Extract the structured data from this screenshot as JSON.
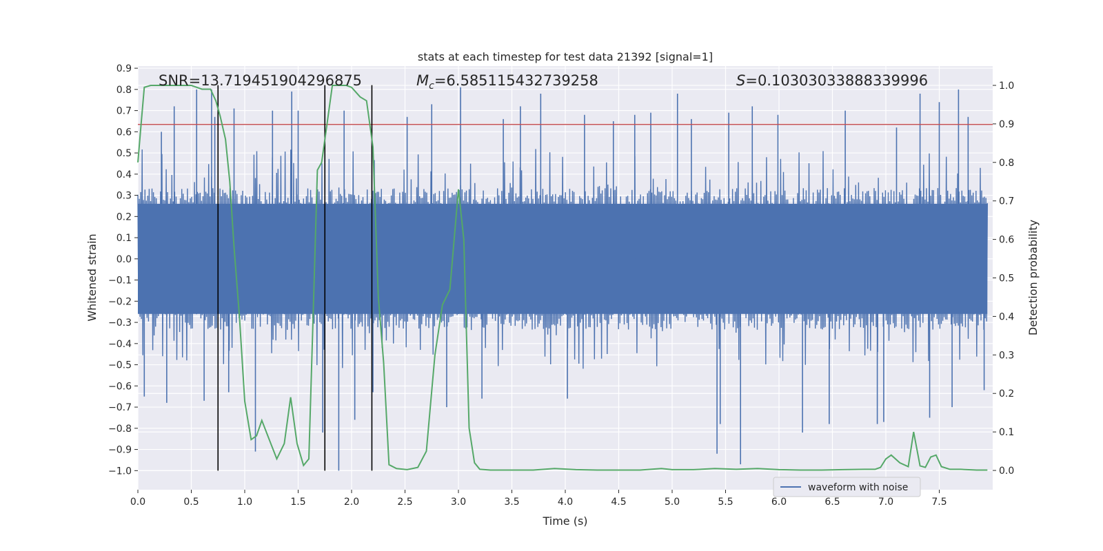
{
  "chart_data": {
    "type": "line",
    "title": "stats at each timestep for test data 21392 [signal=1]",
    "xlabel": "Time (s)",
    "ylabel_left": "Whitened strain",
    "ylabel_right": "Detection probability",
    "xlim": [
      0.0,
      8.0
    ],
    "ylim_left": [
      -1.09,
      0.91
    ],
    "ylim_right": [
      -0.05,
      1.05
    ],
    "x_ticks": [
      0.0,
      0.5,
      1.0,
      1.5,
      2.0,
      2.5,
      3.0,
      3.5,
      4.0,
      4.5,
      5.0,
      5.5,
      6.0,
      6.5,
      7.0,
      7.5
    ],
    "x_tick_labels": [
      "0.0",
      "0.5",
      "1.0",
      "1.5",
      "2.0",
      "2.5",
      "3.0",
      "3.5",
      "4.0",
      "4.5",
      "5.0",
      "5.5",
      "6.0",
      "6.5",
      "7.0",
      "7.5"
    ],
    "y_left_ticks": [
      0.9,
      0.8,
      0.7,
      0.6,
      0.5,
      0.4,
      0.3,
      0.2,
      0.1,
      0.0,
      -0.1,
      -0.2,
      -0.3,
      -0.4,
      -0.5,
      -0.6,
      -0.7,
      -0.8,
      -0.9,
      -1.0
    ],
    "y_left_tick_labels": [
      "0.9",
      "0.8",
      "0.7",
      "0.6",
      "0.5",
      "0.4",
      "0.3",
      "0.2",
      "0.1",
      "0.0",
      "−0.1",
      "−0.2",
      "−0.3",
      "−0.4",
      "−0.5",
      "−0.6",
      "−0.7",
      "−0.8",
      "−0.9",
      "−1.0"
    ],
    "y_right_ticks": [
      1.0,
      0.9,
      0.8,
      0.7,
      0.6,
      0.5,
      0.4,
      0.3,
      0.2,
      0.1,
      0.0
    ],
    "y_right_tick_labels": [
      "1.0",
      "0.9",
      "0.8",
      "0.7",
      "0.6",
      "0.5",
      "0.4",
      "0.3",
      "0.2",
      "0.1",
      "0.0"
    ],
    "annotations": {
      "snr": "SNR=13.719451904296875",
      "mc_symbol": "M",
      "mc_sub": "c",
      "mc_value": "=6.585115432739258",
      "s_symbol": "S",
      "s_value": "=0.10303033888339996"
    },
    "threshold_line": {
      "value": 0.635,
      "color": "#c44e52"
    },
    "vertical_lines": [
      0.75,
      1.75,
      2.19
    ],
    "vertical_line_range": [
      -1.0,
      0.82
    ],
    "waveform": {
      "name": "waveform with noise",
      "color": "#4c72b0",
      "samples": 1200,
      "core_amplitude": 0.26,
      "spikes": [
        {
          "x": 0.06,
          "y": -0.65
        },
        {
          "x": 0.22,
          "y": 0.6
        },
        {
          "x": 0.27,
          "y": -0.68
        },
        {
          "x": 0.34,
          "y": 0.72
        },
        {
          "x": 0.55,
          "y": 0.8
        },
        {
          "x": 0.62,
          "y": -0.67
        },
        {
          "x": 0.69,
          "y": 0.8
        },
        {
          "x": 0.72,
          "y": 0.67
        },
        {
          "x": 0.85,
          "y": -0.63
        },
        {
          "x": 0.9,
          "y": 0.71
        },
        {
          "x": 1.1,
          "y": -0.91
        },
        {
          "x": 1.26,
          "y": 0.7
        },
        {
          "x": 1.44,
          "y": 0.79
        },
        {
          "x": 1.5,
          "y": 0.7
        },
        {
          "x": 1.73,
          "y": -0.82
        },
        {
          "x": 1.88,
          "y": -1.0
        },
        {
          "x": 1.93,
          "y": 0.7
        },
        {
          "x": 2.03,
          "y": -0.76
        },
        {
          "x": 2.2,
          "y": -0.63
        },
        {
          "x": 2.52,
          "y": 0.67
        },
        {
          "x": 2.75,
          "y": 0.73
        },
        {
          "x": 2.89,
          "y": -0.7
        },
        {
          "x": 3.02,
          "y": 0.81
        },
        {
          "x": 3.22,
          "y": -0.66
        },
        {
          "x": 3.42,
          "y": 0.66
        },
        {
          "x": 3.58,
          "y": 0.72
        },
        {
          "x": 3.77,
          "y": 0.78
        },
        {
          "x": 4.02,
          "y": -0.66
        },
        {
          "x": 4.18,
          "y": 0.68
        },
        {
          "x": 4.45,
          "y": 0.65
        },
        {
          "x": 4.65,
          "y": 0.68
        },
        {
          "x": 4.8,
          "y": 0.69
        },
        {
          "x": 5.05,
          "y": 0.78
        },
        {
          "x": 5.18,
          "y": 0.66
        },
        {
          "x": 5.42,
          "y": -0.92
        },
        {
          "x": 5.45,
          "y": -0.78
        },
        {
          "x": 5.53,
          "y": 0.69
        },
        {
          "x": 5.64,
          "y": -0.97
        },
        {
          "x": 5.75,
          "y": 0.72
        },
        {
          "x": 5.99,
          "y": 0.68
        },
        {
          "x": 6.22,
          "y": -0.82
        },
        {
          "x": 6.47,
          "y": -0.78
        },
        {
          "x": 6.62,
          "y": 0.7
        },
        {
          "x": 6.92,
          "y": -0.78
        },
        {
          "x": 6.98,
          "y": -0.77
        },
        {
          "x": 7.1,
          "y": 0.62
        },
        {
          "x": 7.32,
          "y": 0.78
        },
        {
          "x": 7.41,
          "y": -0.75
        },
        {
          "x": 7.5,
          "y": 0.74
        },
        {
          "x": 7.62,
          "y": -0.7
        },
        {
          "x": 7.68,
          "y": 0.8
        },
        {
          "x": 7.77,
          "y": 0.67
        },
        {
          "x": 7.92,
          "y": -0.62
        }
      ]
    },
    "detection_probability": {
      "color": "#55a868",
      "x": [
        0.0,
        0.03,
        0.06,
        0.12,
        0.2,
        0.3,
        0.4,
        0.5,
        0.6,
        0.68,
        0.73,
        0.77,
        0.82,
        0.86,
        0.9,
        0.95,
        1.0,
        1.06,
        1.11,
        1.16,
        1.23,
        1.3,
        1.37,
        1.43,
        1.49,
        1.55,
        1.6,
        1.64,
        1.68,
        1.72,
        1.77,
        1.82,
        1.88,
        1.95,
        2.0,
        2.08,
        2.14,
        2.2,
        2.25,
        2.3,
        2.35,
        2.42,
        2.52,
        2.62,
        2.7,
        2.78,
        2.85,
        2.92,
        3.0,
        3.05,
        3.1,
        3.15,
        3.2,
        3.3,
        3.5,
        3.7,
        3.9,
        4.1,
        4.3,
        4.5,
        4.7,
        4.9,
        5.0,
        5.2,
        5.4,
        5.6,
        5.8,
        6.0,
        6.2,
        6.4,
        6.6,
        6.8,
        6.9,
        6.95,
        7.0,
        7.05,
        7.13,
        7.21,
        7.26,
        7.32,
        7.37,
        7.42,
        7.47,
        7.52,
        7.6,
        7.7,
        7.85,
        7.95
      ],
      "y": [
        0.8,
        0.9,
        0.995,
        1.0,
        1.0,
        1.0,
        1.0,
        1.0,
        0.99,
        0.99,
        0.96,
        0.92,
        0.86,
        0.75,
        0.58,
        0.4,
        0.18,
        0.08,
        0.09,
        0.13,
        0.08,
        0.03,
        0.07,
        0.19,
        0.07,
        0.013,
        0.03,
        0.4,
        0.78,
        0.8,
        0.9,
        1.0,
        1.0,
        1.0,
        0.995,
        0.97,
        0.96,
        0.84,
        0.45,
        0.28,
        0.015,
        0.005,
        0.002,
        0.008,
        0.05,
        0.3,
        0.43,
        0.47,
        0.73,
        0.6,
        0.11,
        0.02,
        0.003,
        0.001,
        0.001,
        0.001,
        0.005,
        0.002,
        0.001,
        0.001,
        0.001,
        0.005,
        0.002,
        0.002,
        0.005,
        0.003,
        0.005,
        0.002,
        0.001,
        0.001,
        0.002,
        0.003,
        0.003,
        0.008,
        0.03,
        0.04,
        0.02,
        0.01,
        0.1,
        0.012,
        0.008,
        0.035,
        0.04,
        0.01,
        0.003,
        0.003,
        0.001,
        0.001
      ]
    },
    "legend": {
      "label": "waveform with noise",
      "location": "lower-right"
    },
    "grid": true
  }
}
